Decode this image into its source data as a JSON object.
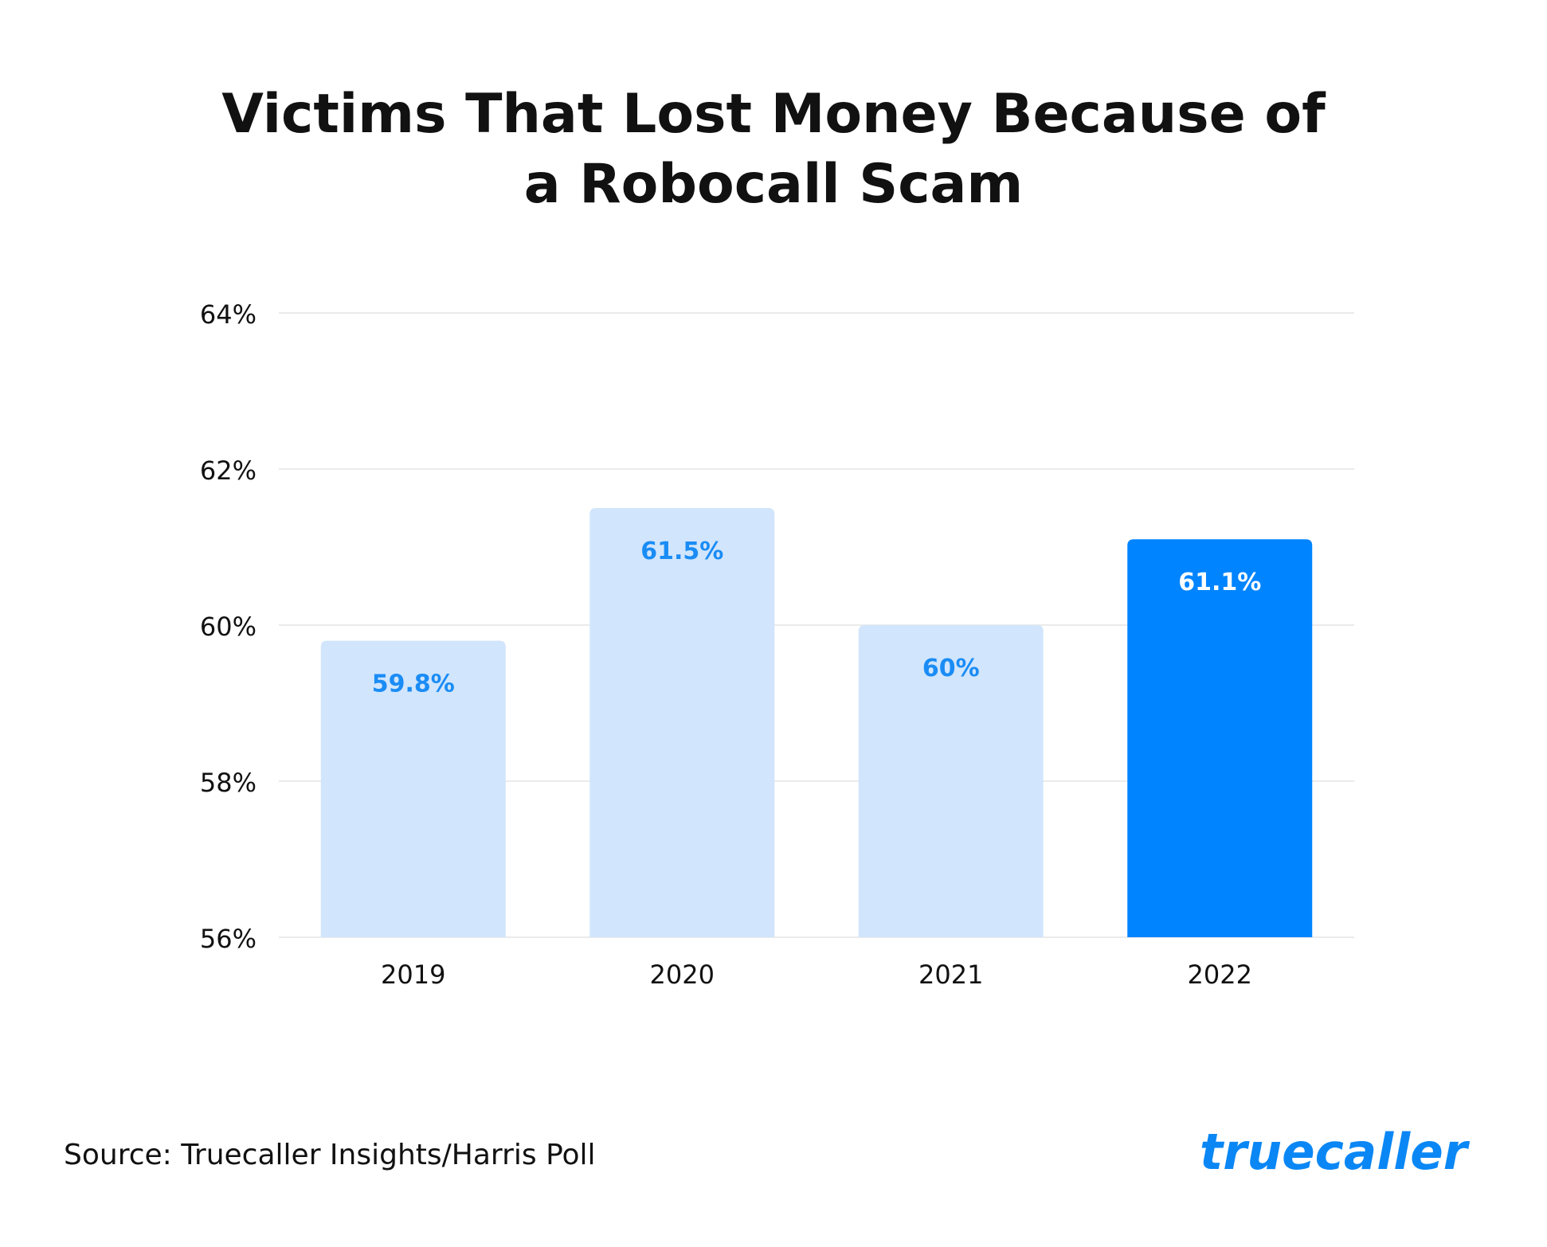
{
  "chart_data": {
    "type": "bar",
    "title": "Victims That Lost Money Because of a Robocall Scam",
    "title_lines": [
      "Victims That Lost Money Because of",
      "a Robocall Scam"
    ],
    "categories": [
      "2019",
      "2020",
      "2021",
      "2022"
    ],
    "values": [
      59.8,
      61.5,
      60.0,
      61.1
    ],
    "value_labels": [
      "59.8%",
      "61.5%",
      "60%",
      "61.1%"
    ],
    "highlight_index": 3,
    "ylim": [
      56,
      64
    ],
    "yticks": [
      56,
      58,
      60,
      62,
      64
    ],
    "ytick_labels": [
      "56%",
      "58%",
      "60%",
      "62%",
      "64%"
    ],
    "xlabel": "",
    "ylabel": "",
    "grid": true,
    "legend": "none",
    "colors": {
      "bar": "#d1e5fc",
      "bar_highlight": "#0184ff",
      "label": "#1a8cf5",
      "label_highlight": "#ffffff",
      "grid": "#ebebeb",
      "text": "#111111"
    }
  },
  "source": "Source: Truecaller Insights/Harris Poll",
  "logo": {
    "text": "truecaller",
    "color": "#0a87f5",
    "icon": "truecaller-logo"
  }
}
